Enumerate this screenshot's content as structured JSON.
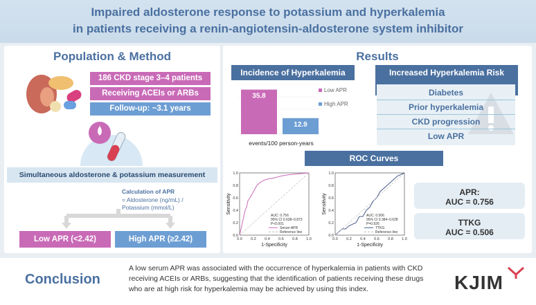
{
  "header": {
    "title_line1": "Impaired aldosterone response to potassium and hyperkalemia",
    "title_line2": "in patients receiving a renin-angiotensin-aldosterone system inhibitor"
  },
  "left": {
    "title": "Population & Method",
    "box1": "186 CKD stage 3–4 patients",
    "box2": "Receiving ACEIs or ARBs",
    "box3": "Follow-up: ~3.1 years",
    "measurement": "Simultaneous aldosterone & potassium measurement",
    "apr_title": "Calculation of APR",
    "apr_line1": "= Aldosterone (ng/mL) /",
    "apr_line2": "Potassium (mmol/L)",
    "low_apr": "Low APR (<2.42)",
    "high_apr": "High APR (≥2.42)"
  },
  "results": {
    "title": "Results",
    "incidence_title": "Incidence of Hyperkalemia",
    "risk_title": "Increased Hyperkalemia Risk Factors",
    "risk_factors": [
      "Diabetes",
      "Prior hyperkalemia",
      "CKD progression",
      "Low APR"
    ],
    "roc_title": "ROC Curves",
    "apr_auc_label": "APR:",
    "apr_auc_value": "AUC = 0.756",
    "ttkg_auc_label": "TTKG",
    "ttkg_auc_value": "AUC = 0.506"
  },
  "chart_data": [
    {
      "type": "bar",
      "categories": [
        "Low APR",
        "High APR"
      ],
      "values": [
        35.8,
        12.9
      ],
      "xlabel": "events/100 person-years",
      "legend": [
        "Low APR",
        "High APR"
      ],
      "colors": {
        "Low APR": "#c96ab7",
        "High APR": "#6d9ed3"
      }
    },
    {
      "type": "line",
      "title": "",
      "xlabel": "1-Specificity",
      "ylabel": "Sensitivity",
      "xlim": [
        0,
        1
      ],
      "ylim": [
        0,
        1
      ],
      "x_ticks": [
        "0.0",
        "0.2",
        "0.4",
        "0.6",
        "0.8",
        "1.0"
      ],
      "y_ticks": [
        "0.0",
        "0.2",
        "0.4",
        "0.6",
        "0.8",
        "1.0"
      ],
      "annotation": [
        "AUC: 0.756",
        "95% CI 0.638–0.873",
        "P<0.001"
      ],
      "series": [
        {
          "name": "Serum APR",
          "color": "#c96ab7",
          "x": [
            0,
            0.02,
            0.05,
            0.08,
            0.1,
            0.12,
            0.15,
            0.2,
            0.25,
            0.3,
            0.35,
            0.4,
            0.5,
            0.6,
            0.7,
            0.8,
            0.9,
            1.0
          ],
          "y": [
            0,
            0.1,
            0.25,
            0.4,
            0.45,
            0.55,
            0.6,
            0.7,
            0.8,
            0.85,
            0.88,
            0.9,
            0.92,
            0.95,
            0.97,
            0.98,
            0.99,
            1.0
          ]
        },
        {
          "name": "Reference line",
          "color": "#bbbbbb",
          "x": [
            0,
            1
          ],
          "y": [
            0,
            1
          ]
        }
      ]
    },
    {
      "type": "line",
      "title": "",
      "xlabel": "1-Specificity",
      "ylabel": "Sensitivity",
      "xlim": [
        0,
        1
      ],
      "ylim": [
        0,
        1
      ],
      "x_ticks": [
        "0.0",
        "0.2",
        "0.4",
        "0.6",
        "0.8",
        "1.0"
      ],
      "y_ticks": [
        "0.0",
        "0.2",
        "0.4",
        "0.6",
        "0.8",
        "1.0"
      ],
      "annotation": [
        "AUC: 0.506",
        "95% CI 0.384–0.628",
        "P=0.926"
      ],
      "series": [
        {
          "name": "TTKG",
          "color": "#4a5a8a",
          "x": [
            0,
            0.05,
            0.1,
            0.15,
            0.2,
            0.3,
            0.35,
            0.4,
            0.45,
            0.5,
            0.55,
            0.6,
            0.65,
            0.7,
            0.8,
            0.9,
            1.0
          ],
          "y": [
            0,
            0.05,
            0.1,
            0.1,
            0.15,
            0.2,
            0.3,
            0.3,
            0.4,
            0.45,
            0.55,
            0.6,
            0.7,
            0.75,
            0.85,
            0.95,
            1.0
          ]
        },
        {
          "name": "Reference line",
          "color": "#bbbbbb",
          "x": [
            0,
            1
          ],
          "y": [
            0,
            1
          ]
        }
      ]
    }
  ],
  "conclusion": {
    "label": "Conclusion",
    "text_line1": "A low serum APR was associated with the occurrence of hyperkalemia in patients with CKD",
    "text_line2": "receiving ACEIs or ARBs, suggesting that the identification of patients receiving these drugs",
    "text_line3": "who are at high risk for hyperkalemia may be achieved by using this index.",
    "logo": "KJIM"
  }
}
